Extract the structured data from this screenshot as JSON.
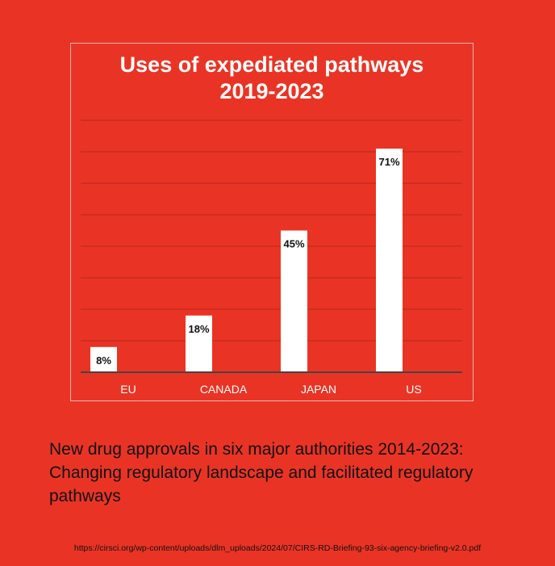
{
  "chart_data": {
    "type": "bar",
    "title": "Uses of expediated pathways 2019-2023",
    "title_lines": [
      "Uses of expediated pathways",
      "2019-2023"
    ],
    "categories": [
      "EU",
      "CANADA",
      "JAPAN",
      "US"
    ],
    "values": [
      8,
      18,
      45,
      71
    ],
    "data_labels": [
      "8%",
      "18%",
      "45%",
      "71%"
    ],
    "xlabel": "",
    "ylabel": "",
    "ylim": [
      0,
      80
    ],
    "grid": true,
    "colors": {
      "background": "#e93425",
      "bar": "#ffffff",
      "grid": "#b8281c",
      "baseline": "#444444",
      "text": "#ffffff"
    }
  },
  "caption": "New drug approvals in six major authorities 2014-2023: Changing regulatory landscape and facilitated regulatory pathways",
  "source_url": "https://cirsci.org/wp-content/uploads/dlm_uploads/2024/07/CIRS-RD-Briefing-93-six-agency-briefing-v2.0.pdf"
}
